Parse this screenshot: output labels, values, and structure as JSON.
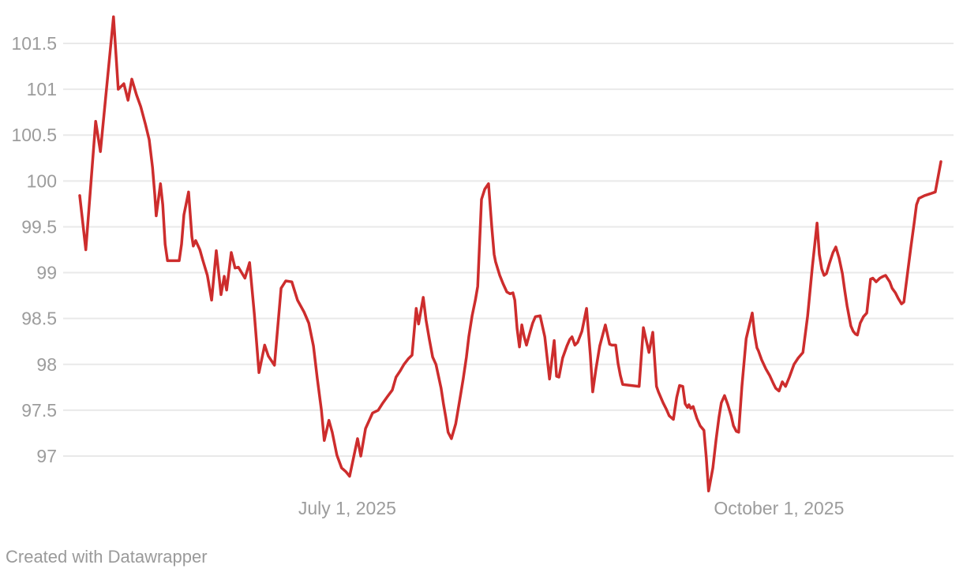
{
  "footer": {
    "credit": "Created with Datawrapper"
  },
  "colors": {
    "line": "#cd2d2d",
    "grid": "#e9e9e9",
    "tick_label": "#9c9c9c",
    "credit_text": "#9a9a9a",
    "background": "#ffffff"
  },
  "chart_data": {
    "type": "line",
    "title": "",
    "legend": "none",
    "grid": "horizontal",
    "x_unit": "days_since_2025-05-05",
    "xlim": [
      0,
      183.5
    ],
    "ylim": [
      96.5,
      101.9
    ],
    "y_ticks": [
      {
        "v": 101.5,
        "label": "101.5"
      },
      {
        "v": 101,
        "label": "101"
      },
      {
        "v": 100.5,
        "label": "100.5"
      },
      {
        "v": 100,
        "label": "100"
      },
      {
        "v": 99.5,
        "label": "99.5"
      },
      {
        "v": 99,
        "label": "99"
      },
      {
        "v": 98.5,
        "label": "98.5"
      },
      {
        "v": 98,
        "label": "98"
      },
      {
        "v": 97.5,
        "label": "97.5"
      },
      {
        "v": 97,
        "label": "97"
      }
    ],
    "x_ticks": [
      {
        "d": 57,
        "label": "July 1, 2025"
      },
      {
        "d": 149,
        "label": "October 1, 2025"
      }
    ],
    "x": [
      0,
      1.3,
      3.4,
      4.4,
      7.2,
      8.2,
      9.4,
      10.3,
      11.1,
      12.1,
      13,
      14,
      14.8,
      15.5,
      16,
      16.3,
      17.2,
      17.7,
      18.2,
      18.7,
      21.2,
      21.7,
      22.2,
      23.2,
      23.9,
      24.2,
      24.7,
      25.6,
      26.2,
      27.2,
      28.1,
      29.1,
      30.1,
      30.8,
      31.3,
      32.3,
      33.1,
      33.8,
      35.2,
      36.2,
      37.2,
      38.2,
      39.4,
      40.2,
      41.5,
      42.9,
      43.9,
      45.2,
      46.4,
      47.8,
      48.8,
      49.8,
      50.6,
      51.5,
      52.1,
      53.1,
      53.8,
      54.8,
      55.8,
      56.7,
      57.5,
      59.2,
      59.9,
      60.9,
      62.4,
      63.6,
      64.6,
      65.6,
      66.6,
      67.4,
      68.3,
      69.1,
      70,
      70.8,
      71.7,
      72.2,
      73.2,
      73.8,
      74.5,
      75.2,
      75.9,
      76.5,
      77,
      77.5,
      78,
      78.5,
      79.2,
      80.1,
      80.9,
      81.7,
      82.4,
      82.9,
      83.6,
      84.3,
      84.8,
      85.6,
      86.3,
      87.1,
      87.8,
      88.3,
      88.6,
      89.5,
      90.2,
      91,
      91.7,
      92.3,
      92.7,
      93.2,
      93.7,
      94.2,
      94.7,
      95.2,
      96,
      96.5,
      97.1,
      98.1,
      99.1,
      100.1,
      101.1,
      101.6,
      102.1,
      102.9,
      103.8,
      104.4,
      104.9,
      105.5,
      106.1,
      107,
      108,
      108.8,
      109.3,
      110,
      110.8,
      112,
      112.9,
      113.4,
      114.2,
      114.7,
      115.2,
      115.7,
      119.2,
      120.1,
      121.3,
      122.1,
      122.9,
      123.3,
      124.3,
      125,
      125.6,
      126.5,
      127.2,
      127.8,
      128.5,
      129,
      129.5,
      129.8,
      130.2,
      130.7,
      131.5,
      132.2,
      133,
      133.5,
      134,
      134.9,
      135.6,
      136.2,
      136.7,
      137.4,
      138.1,
      138.8,
      139.3,
      139.9,
      140.4,
      141.1,
      142,
      143.3,
      143.8,
      144.3,
      144.6,
      145.3,
      146.2,
      147,
      147.8,
      148.3,
      149,
      149.7,
      150.4,
      151.2,
      152.2,
      153.1,
      154.1,
      155.1,
      156.1,
      157.1,
      157.6,
      158.1,
      158.6,
      159.1,
      159.8,
      160.5,
      161.1,
      161.8,
      162.5,
      163,
      163.5,
      164.3,
      164.8,
      165.3,
      165.7,
      166.3,
      167,
      167.7,
      168.5,
      169,
      169.7,
      170.5,
      171.2,
      171.7,
      172.6,
      173.1,
      173.8,
      174.4,
      175.1,
      175.6,
      176.4,
      177.1,
      177.8,
      178.3,
      178.8,
      180,
      181.2,
      182.3,
      183.5
    ],
    "values": [
      99.84,
      99.25,
      100.65,
      100.32,
      101.79,
      101,
      101.06,
      100.88,
      101.11,
      100.94,
      100.81,
      100.62,
      100.45,
      100.15,
      99.85,
      99.62,
      99.97,
      99.74,
      99.31,
      99.13,
      99.13,
      99.31,
      99.63,
      99.88,
      99.39,
      99.29,
      99.35,
      99.25,
      99.14,
      98.97,
      98.7,
      99.24,
      98.76,
      98.96,
      98.81,
      99.22,
      99.05,
      99.06,
      98.94,
      99.11,
      98.55,
      97.91,
      98.21,
      98.09,
      97.99,
      98.83,
      98.91,
      98.9,
      98.7,
      98.57,
      98.45,
      98.2,
      97.85,
      97.5,
      97.17,
      97.39,
      97.26,
      97.01,
      96.87,
      96.83,
      96.78,
      97.19,
      97,
      97.3,
      97.47,
      97.5,
      97.58,
      97.65,
      97.72,
      97.86,
      97.93,
      98,
      98.06,
      98.1,
      98.61,
      98.44,
      98.73,
      98.48,
      98.27,
      98.08,
      98,
      97.86,
      97.74,
      97.57,
      97.42,
      97.26,
      97.19,
      97.35,
      97.59,
      97.84,
      98.08,
      98.3,
      98.53,
      98.7,
      98.85,
      99.8,
      99.91,
      99.97,
      99.5,
      99.2,
      99.12,
      98.97,
      98.88,
      98.79,
      98.77,
      98.78,
      98.7,
      98.39,
      98.19,
      98.43,
      98.3,
      98.21,
      98.36,
      98.45,
      98.52,
      98.53,
      98.3,
      97.84,
      98.26,
      97.87,
      97.86,
      98.07,
      98.2,
      98.27,
      98.3,
      98.21,
      98.24,
      98.36,
      98.61,
      98.1,
      97.7,
      97.95,
      98.2,
      98.43,
      98.22,
      98.21,
      98.21,
      98.01,
      97.88,
      97.78,
      97.76,
      98.4,
      98.13,
      98.35,
      97.76,
      97.7,
      97.58,
      97.51,
      97.44,
      97.4,
      97.64,
      97.77,
      97.76,
      97.57,
      97.53,
      97.56,
      97.52,
      97.54,
      97.41,
      97.33,
      97.28,
      96.98,
      96.62,
      96.87,
      97.18,
      97.42,
      97.58,
      97.66,
      97.56,
      97.44,
      97.33,
      97.27,
      97.26,
      97.76,
      98.28,
      98.56,
      98.33,
      98.18,
      98.15,
      98.05,
      97.95,
      97.88,
      97.79,
      97.74,
      97.71,
      97.81,
      97.76,
      97.86,
      98,
      98.07,
      98.13,
      98.53,
      99.06,
      99.54,
      99.2,
      99.04,
      98.97,
      98.99,
      99.11,
      99.22,
      99.28,
      99.16,
      98.99,
      98.81,
      98.64,
      98.42,
      98.36,
      98.33,
      98.32,
      98.45,
      98.52,
      98.56,
      98.93,
      98.94,
      98.9,
      98.94,
      98.96,
      98.97,
      98.9,
      98.83,
      98.78,
      98.72,
      98.66,
      98.68,
      99,
      99.28,
      99.54,
      99.74,
      99.81,
      99.84,
      99.86,
      99.88,
      100.21
    ]
  }
}
